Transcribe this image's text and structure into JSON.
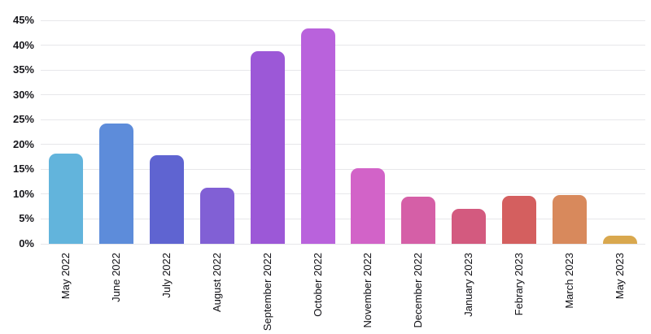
{
  "chart_data": {
    "type": "bar",
    "title": "",
    "xlabel": "",
    "ylabel": "",
    "categories": [
      "May 2022",
      "June 2022",
      "July 2022",
      "August 2022",
      "September 2022",
      "October 2022",
      "November 2022",
      "December 2022",
      "January 2023",
      "Febrary 2023",
      "March 2023",
      "May 2023"
    ],
    "values": [
      18.2,
      24.2,
      17.9,
      11.3,
      38.8,
      43.3,
      15.2,
      9.5,
      7.1,
      9.6,
      9.8,
      1.6
    ],
    "bar_colors": [
      "#62b4dc",
      "#5d8cda",
      "#5f64d1",
      "#8160d5",
      "#9c58d7",
      "#b962dc",
      "#d263c8",
      "#d55fa7",
      "#d35a7f",
      "#d45f5f",
      "#d8895c",
      "#d9a84e"
    ],
    "yticks": [
      0,
      5,
      10,
      15,
      20,
      25,
      30,
      35,
      40,
      45
    ],
    "ytick_labels": [
      "0%",
      "5%",
      "10%",
      "15%",
      "20%",
      "25%",
      "30%",
      "35%",
      "40%",
      "45%"
    ],
    "ylim": [
      0,
      45
    ],
    "grid": true,
    "legend": "none",
    "background_color": "#ffffff",
    "gridline_color": "#e7e7ea",
    "tick_label_color": "#17171c"
  }
}
